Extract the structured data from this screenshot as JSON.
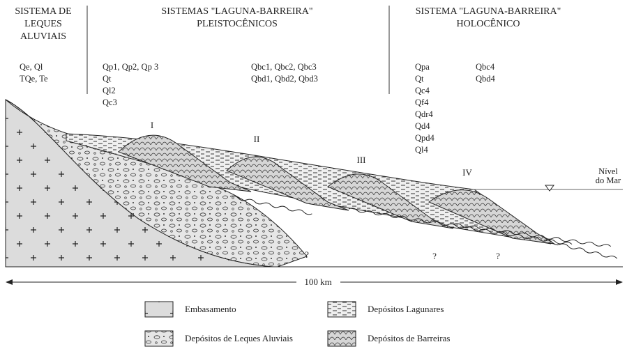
{
  "headers": [
    {
      "lines": [
        "SISTEMA DE",
        "LEQUES",
        "ALUVIAIS"
      ]
    },
    {
      "lines": [
        "SISTEMAS \"LAGUNA-BARREIRA\"",
        "PLEISTOCÊNICOS"
      ]
    },
    {
      "lines": [
        "SISTEMA \"LAGUNA-BARREIRA\"",
        "HOLOCÊNICO"
      ]
    }
  ],
  "units": [
    {
      "lines": [
        "Qe, Ql",
        "TQe, Te"
      ]
    },
    {
      "lines": [
        "Qp1, Qp2, Qp 3",
        "Qt",
        "Ql2",
        "Qc3"
      ]
    },
    {
      "lines": [
        "Qbc1, Qbc2, Qbc3",
        "Qbd1, Qbd2, Qbd3"
      ]
    },
    {
      "lines": [
        "Qpa",
        "Qt",
        "Qc4",
        "Qf4",
        "Qdr4",
        "Qd4",
        "Qpd4",
        "Ql4"
      ]
    },
    {
      "lines": [
        "Qbc4",
        "Qbd4"
      ]
    }
  ],
  "barriers": [
    "I",
    "II",
    "III",
    "IV"
  ],
  "sea_level": [
    "Nível",
    "do Mar"
  ],
  "unknown": [
    "?",
    "?",
    "?"
  ],
  "scale": "100 km",
  "legend": [
    {
      "label": "Embasamento"
    },
    {
      "label": "Depósitos Lagunares"
    },
    {
      "label": "Depósitos de Leques Aluviais"
    },
    {
      "label": "Depósitos de Barreiras"
    }
  ]
}
